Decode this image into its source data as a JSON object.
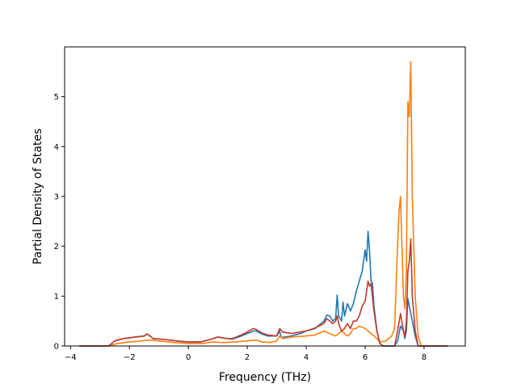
{
  "chart_data": {
    "type": "line",
    "title": "",
    "xlabel": "Frequency (THz)",
    "ylabel": "Partial Density of States",
    "xlim": [
      -4.2,
      9.4
    ],
    "ylim": [
      0,
      6.0
    ],
    "xticks": [
      -4,
      -2,
      0,
      2,
      4,
      6,
      8
    ],
    "yticks": [
      0,
      1,
      2,
      3,
      4,
      5
    ],
    "grid": false,
    "legend": "none",
    "series": [
      {
        "color": "#1f77b4",
        "points": [
          [
            -3.7,
            0.0
          ],
          [
            -2.7,
            0.0
          ],
          [
            -2.5,
            0.1
          ],
          [
            -2.2,
            0.15
          ],
          [
            -1.8,
            0.18
          ],
          [
            -1.5,
            0.2
          ],
          [
            -1.4,
            0.24
          ],
          [
            -1.3,
            0.2
          ],
          [
            -1.2,
            0.15
          ],
          [
            -0.8,
            0.13
          ],
          [
            -0.4,
            0.1
          ],
          [
            0.0,
            0.08
          ],
          [
            0.4,
            0.08
          ],
          [
            0.8,
            0.14
          ],
          [
            1.0,
            0.18
          ],
          [
            1.3,
            0.15
          ],
          [
            1.5,
            0.14
          ],
          [
            1.8,
            0.2
          ],
          [
            2.0,
            0.25
          ],
          [
            2.2,
            0.3
          ],
          [
            2.3,
            0.3
          ],
          [
            2.5,
            0.24
          ],
          [
            2.7,
            0.2
          ],
          [
            3.0,
            0.2
          ],
          [
            3.1,
            0.3
          ],
          [
            3.15,
            0.17
          ],
          [
            3.5,
            0.2
          ],
          [
            3.8,
            0.25
          ],
          [
            4.0,
            0.3
          ],
          [
            4.3,
            0.35
          ],
          [
            4.6,
            0.5
          ],
          [
            4.7,
            0.62
          ],
          [
            4.8,
            0.6
          ],
          [
            4.9,
            0.5
          ],
          [
            5.0,
            0.55
          ],
          [
            5.05,
            1.02
          ],
          [
            5.1,
            0.6
          ],
          [
            5.2,
            0.5
          ],
          [
            5.25,
            0.88
          ],
          [
            5.3,
            0.6
          ],
          [
            5.4,
            0.85
          ],
          [
            5.5,
            0.7
          ],
          [
            5.6,
            0.85
          ],
          [
            5.7,
            1.1
          ],
          [
            5.8,
            1.3
          ],
          [
            5.9,
            1.5
          ],
          [
            6.0,
            1.93
          ],
          [
            6.05,
            1.7
          ],
          [
            6.1,
            2.3
          ],
          [
            6.15,
            1.9
          ],
          [
            6.2,
            1.3
          ],
          [
            6.25,
            1.25
          ],
          [
            6.3,
            0.8
          ],
          [
            6.4,
            0.3
          ],
          [
            6.5,
            0.05
          ],
          [
            6.6,
            0.0
          ],
          [
            7.0,
            0.0
          ],
          [
            7.1,
            0.1
          ],
          [
            7.2,
            0.4
          ],
          [
            7.3,
            0.3
          ],
          [
            7.35,
            0.15
          ],
          [
            7.4,
            0.3
          ],
          [
            7.45,
            0.95
          ],
          [
            7.5,
            0.8
          ],
          [
            7.6,
            0.5
          ],
          [
            7.7,
            0.2
          ],
          [
            7.8,
            0.0
          ],
          [
            8.8,
            0.0
          ]
        ]
      },
      {
        "color": "#ff7f0e",
        "points": [
          [
            -3.7,
            0.0
          ],
          [
            -2.7,
            0.0
          ],
          [
            -2.4,
            0.05
          ],
          [
            -2.0,
            0.08
          ],
          [
            -1.6,
            0.1
          ],
          [
            -1.3,
            0.12
          ],
          [
            -1.0,
            0.1
          ],
          [
            -0.5,
            0.07
          ],
          [
            0.0,
            0.05
          ],
          [
            0.5,
            0.05
          ],
          [
            0.8,
            0.08
          ],
          [
            1.2,
            0.07
          ],
          [
            1.6,
            0.08
          ],
          [
            2.0,
            0.1
          ],
          [
            2.3,
            0.12
          ],
          [
            2.5,
            0.08
          ],
          [
            2.8,
            0.07
          ],
          [
            3.0,
            0.1
          ],
          [
            3.1,
            0.2
          ],
          [
            3.2,
            0.15
          ],
          [
            3.5,
            0.18
          ],
          [
            4.0,
            0.2
          ],
          [
            4.3,
            0.22
          ],
          [
            4.6,
            0.3
          ],
          [
            4.8,
            0.25
          ],
          [
            5.0,
            0.2
          ],
          [
            5.2,
            0.3
          ],
          [
            5.3,
            0.25
          ],
          [
            5.4,
            0.2
          ],
          [
            5.5,
            0.25
          ],
          [
            5.6,
            0.35
          ],
          [
            5.7,
            0.35
          ],
          [
            5.8,
            0.4
          ],
          [
            6.0,
            0.35
          ],
          [
            6.2,
            0.25
          ],
          [
            6.4,
            0.15
          ],
          [
            6.5,
            0.08
          ],
          [
            6.7,
            0.1
          ],
          [
            6.9,
            0.2
          ],
          [
            7.0,
            0.35
          ],
          [
            7.1,
            2.0
          ],
          [
            7.15,
            2.7
          ],
          [
            7.2,
            3.0
          ],
          [
            7.25,
            2.0
          ],
          [
            7.3,
            1.0
          ],
          [
            7.35,
            0.75
          ],
          [
            7.4,
            1.5
          ],
          [
            7.45,
            4.9
          ],
          [
            7.5,
            4.6
          ],
          [
            7.55,
            5.7
          ],
          [
            7.6,
            3.0
          ],
          [
            7.7,
            1.0
          ],
          [
            7.8,
            0.2
          ],
          [
            7.9,
            0.0
          ],
          [
            8.8,
            0.0
          ]
        ]
      },
      {
        "color": "#c0392b",
        "points": [
          [
            -3.7,
            0.0
          ],
          [
            -2.7,
            0.0
          ],
          [
            -2.5,
            0.1
          ],
          [
            -2.2,
            0.15
          ],
          [
            -1.8,
            0.18
          ],
          [
            -1.5,
            0.2
          ],
          [
            -1.4,
            0.24
          ],
          [
            -1.3,
            0.2
          ],
          [
            -1.2,
            0.15
          ],
          [
            -0.8,
            0.13
          ],
          [
            -0.4,
            0.1
          ],
          [
            0.0,
            0.08
          ],
          [
            0.4,
            0.08
          ],
          [
            0.8,
            0.14
          ],
          [
            1.0,
            0.18
          ],
          [
            1.3,
            0.15
          ],
          [
            1.5,
            0.15
          ],
          [
            1.8,
            0.22
          ],
          [
            2.0,
            0.28
          ],
          [
            2.2,
            0.35
          ],
          [
            2.3,
            0.33
          ],
          [
            2.5,
            0.26
          ],
          [
            2.7,
            0.22
          ],
          [
            3.0,
            0.2
          ],
          [
            3.1,
            0.35
          ],
          [
            3.2,
            0.28
          ],
          [
            3.5,
            0.25
          ],
          [
            3.8,
            0.28
          ],
          [
            4.0,
            0.3
          ],
          [
            4.3,
            0.36
          ],
          [
            4.6,
            0.45
          ],
          [
            4.7,
            0.55
          ],
          [
            4.8,
            0.5
          ],
          [
            4.9,
            0.45
          ],
          [
            5.0,
            0.5
          ],
          [
            5.05,
            0.6
          ],
          [
            5.1,
            0.45
          ],
          [
            5.2,
            0.3
          ],
          [
            5.3,
            0.35
          ],
          [
            5.4,
            0.45
          ],
          [
            5.5,
            0.35
          ],
          [
            5.6,
            0.5
          ],
          [
            5.7,
            0.5
          ],
          [
            5.8,
            0.6
          ],
          [
            5.9,
            0.8
          ],
          [
            6.0,
            0.9
          ],
          [
            6.1,
            1.3
          ],
          [
            6.15,
            1.2
          ],
          [
            6.2,
            1.25
          ],
          [
            6.3,
            0.7
          ],
          [
            6.4,
            0.3
          ],
          [
            6.5,
            0.05
          ],
          [
            6.6,
            0.0
          ],
          [
            7.0,
            0.0
          ],
          [
            7.1,
            0.3
          ],
          [
            7.2,
            0.65
          ],
          [
            7.3,
            0.3
          ],
          [
            7.35,
            0.2
          ],
          [
            7.4,
            0.5
          ],
          [
            7.45,
            1.5
          ],
          [
            7.5,
            1.7
          ],
          [
            7.55,
            2.15
          ],
          [
            7.6,
            1.0
          ],
          [
            7.7,
            0.3
          ],
          [
            7.8,
            0.0
          ],
          [
            8.8,
            0.0
          ]
        ]
      }
    ]
  }
}
